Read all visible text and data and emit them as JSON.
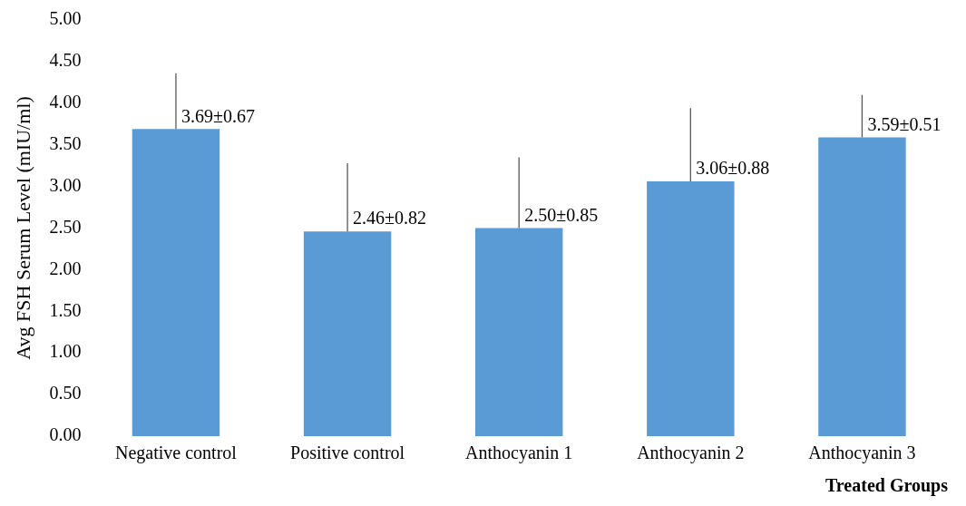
{
  "chart_data": {
    "type": "bar",
    "xlabel": "Treated Groups",
    "ylabel": "Avg FSH Serum Level (mIU/ml)",
    "categories": [
      "Negative control",
      "Positive control",
      "Anthocyanin 1",
      "Anthocyanin 2",
      "Anthocyanin 3"
    ],
    "values": [
      3.69,
      2.46,
      2.5,
      3.06,
      3.59
    ],
    "errors": [
      [
        3.69,
        4.36
      ],
      [
        2.46,
        3.28
      ],
      [
        2.5,
        3.35
      ],
      [
        3.06,
        3.94
      ],
      [
        3.59,
        4.1
      ]
    ],
    "value_labels": [
      "3.69±0.67",
      "2.46±0.82",
      "2.50±0.85",
      "3.06±0.88",
      "3.59±0.51"
    ],
    "color": "#5b9bd5",
    "ylim": [
      0,
      5
    ],
    "yticks": [
      {
        "value": 0,
        "label": "0.00"
      },
      {
        "value": 0.5,
        "label": "0.50"
      },
      {
        "value": 1,
        "label": "1.00"
      },
      {
        "value": 1.5,
        "label": "1.50"
      },
      {
        "value": 2,
        "label": "2.00"
      },
      {
        "value": 2.5,
        "label": "2.50"
      },
      {
        "value": 3,
        "label": "3.00"
      },
      {
        "value": 3.5,
        "label": "3.50"
      },
      {
        "value": 4,
        "label": "4.00"
      },
      {
        "value": 4.5,
        "label": "4.50"
      },
      {
        "value": 5,
        "label": "5.00"
      }
    ]
  }
}
